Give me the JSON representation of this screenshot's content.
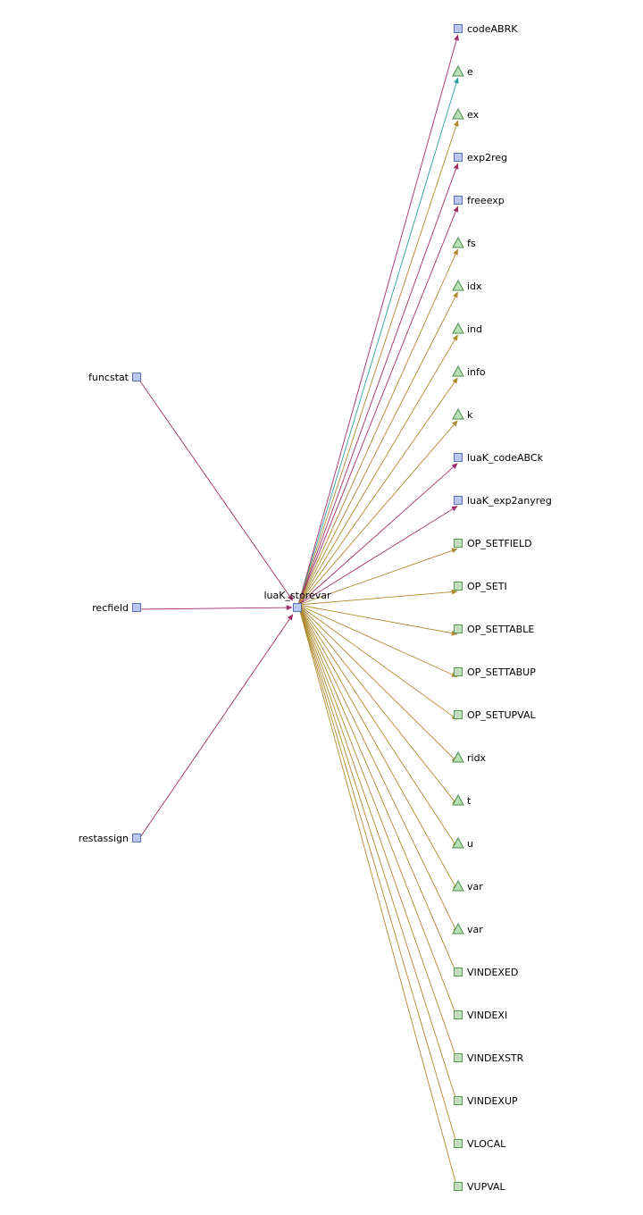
{
  "center": {
    "id": "luaK_storevar",
    "label": "luaK_storevar",
    "kind": "function"
  },
  "callers": [
    {
      "id": "funcstat",
      "label": "funcstat",
      "kind": "function"
    },
    {
      "id": "recfield",
      "label": "recfield",
      "kind": "function"
    },
    {
      "id": "restassign",
      "label": "restassign",
      "kind": "function"
    }
  ],
  "targets": [
    {
      "label": "codeABRK",
      "kind": "function"
    },
    {
      "label": "e",
      "kind": "variable"
    },
    {
      "label": "ex",
      "kind": "variable"
    },
    {
      "label": "exp2reg",
      "kind": "function"
    },
    {
      "label": "freeexp",
      "kind": "function"
    },
    {
      "label": "fs",
      "kind": "variable"
    },
    {
      "label": "idx",
      "kind": "variable"
    },
    {
      "label": "ind",
      "kind": "variable"
    },
    {
      "label": "info",
      "kind": "variable"
    },
    {
      "label": "k",
      "kind": "variable"
    },
    {
      "label": "luaK_codeABCk",
      "kind": "function"
    },
    {
      "label": "luaK_exp2anyreg",
      "kind": "function"
    },
    {
      "label": "OP_SETFIELD",
      "kind": "constant"
    },
    {
      "label": "OP_SETI",
      "kind": "constant"
    },
    {
      "label": "OP_SETTABLE",
      "kind": "constant"
    },
    {
      "label": "OP_SETTABUP",
      "kind": "constant"
    },
    {
      "label": "OP_SETUPVAL",
      "kind": "constant"
    },
    {
      "label": "ridx",
      "kind": "variable"
    },
    {
      "label": "t",
      "kind": "variable"
    },
    {
      "label": "u",
      "kind": "variable"
    },
    {
      "label": "var",
      "kind": "variable"
    },
    {
      "label": "var",
      "kind": "variable"
    },
    {
      "label": "VINDEXED",
      "kind": "constant"
    },
    {
      "label": "VINDEXI",
      "kind": "constant"
    },
    {
      "label": "VINDEXSTR",
      "kind": "constant"
    },
    {
      "label": "VINDEXUP",
      "kind": "constant"
    },
    {
      "label": "VLOCAL",
      "kind": "constant"
    },
    {
      "label": "VUPVAL",
      "kind": "constant"
    }
  ],
  "styles": {
    "function_fill": "#b8c8f0",
    "function_stroke": "#5a72b8",
    "variable_fill": "#b8e0b8",
    "variable_stroke": "#4a8a4a",
    "constant_fill": "#c0e0c0",
    "constant_stroke": "#5a9a5a",
    "call_edge_color": "#a0306a",
    "ref_edge_color": "#b08a30",
    "alt_edge_color": "#30a0a0"
  }
}
